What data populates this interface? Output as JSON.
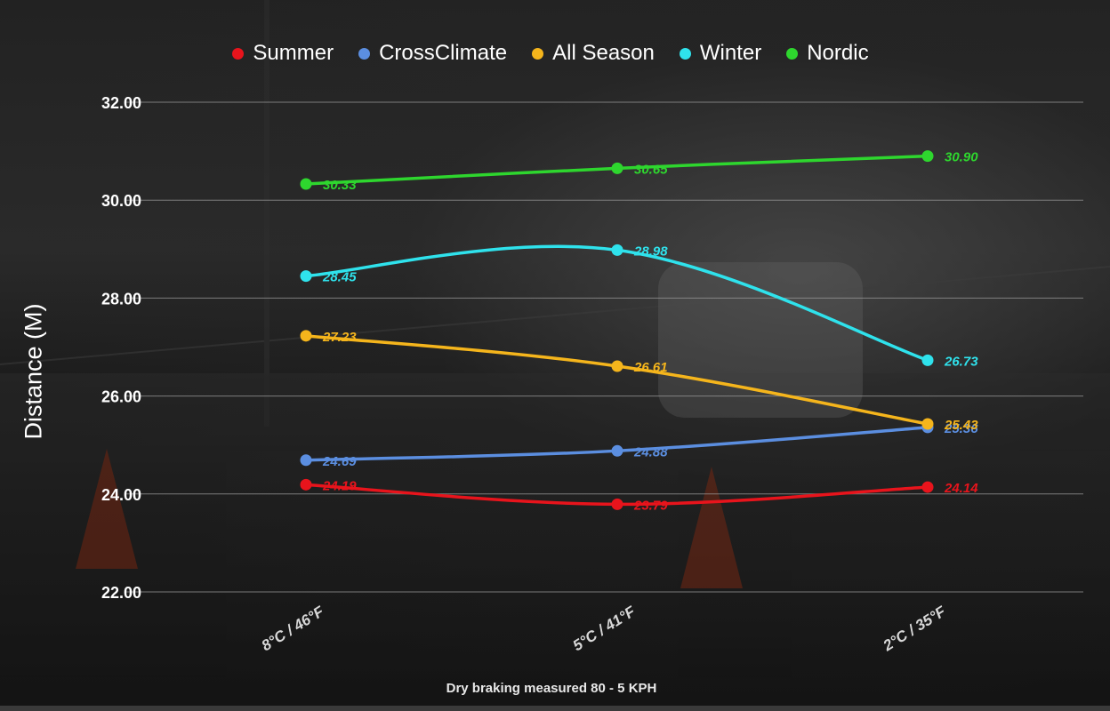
{
  "chart_data": {
    "type": "line",
    "title": "",
    "caption": "Dry braking measured 80 - 5 KPH",
    "ylabel": "Distance (M)",
    "xlabel": "",
    "ylim": [
      22,
      32
    ],
    "yticks": [
      "22.00",
      "24.00",
      "26.00",
      "28.00",
      "30.00",
      "32.00"
    ],
    "categories": [
      "8°C / 46°F",
      "5°C / 41°F",
      "2°C / 35°F"
    ],
    "grid": true,
    "legend_position": "top",
    "series": [
      {
        "name": "Summer",
        "color": "#e8141c",
        "values": [
          24.19,
          23.79,
          24.14
        ],
        "labels": [
          "24.19",
          "23.79",
          "24.14"
        ]
      },
      {
        "name": "CrossClimate",
        "color": "#5b8ee0",
        "values": [
          24.69,
          24.88,
          25.36
        ],
        "labels": [
          "24.69",
          "24.88",
          "25.36"
        ]
      },
      {
        "name": "All Season",
        "color": "#f5b51c",
        "values": [
          27.23,
          26.61,
          25.43
        ],
        "labels": [
          "27.23",
          "26.61",
          "25.43"
        ]
      },
      {
        "name": "Winter",
        "color": "#2fe2ec",
        "values": [
          28.45,
          28.98,
          26.73
        ],
        "labels": [
          "28.45",
          "28.98",
          "26.73"
        ]
      },
      {
        "name": "Nordic",
        "color": "#2ed62e",
        "values": [
          30.33,
          30.65,
          30.9
        ],
        "labels": [
          "30.33",
          "30.65",
          "30.90"
        ]
      }
    ]
  }
}
